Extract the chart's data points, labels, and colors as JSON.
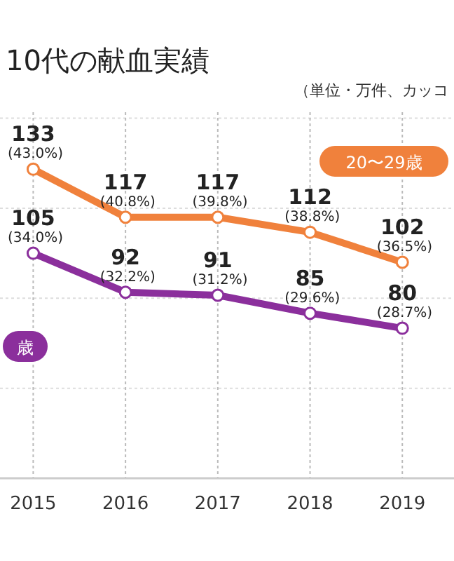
{
  "chart_data": {
    "type": "line",
    "title": "10代の献血実績",
    "annotations": [
      "（単位・万件、カッコ"
    ],
    "x": [
      2015,
      2016,
      2017,
      2018,
      2019
    ],
    "xlim": [
      2014.64,
      2019.56
    ],
    "xticks": [
      2015,
      2016,
      2017,
      2018,
      2019
    ],
    "ylim": [
      30,
      152
    ],
    "yticks": [
      {
        "value": 60,
        "label": null
      },
      {
        "value": 90,
        "label": null
      },
      {
        "value": 120,
        "label": null
      },
      {
        "value": 150,
        "label": null
      }
    ],
    "tick_labels": "x",
    "grid": true,
    "marker": "circle",
    "legend": "top right",
    "series": [
      {
        "name": "20〜29歳",
        "color": "#f0813c",
        "values": [
          133,
          117,
          117,
          112,
          102
        ],
        "value_labels": [
          "133 (43.0%)",
          "117 (40.8%)",
          "117 (39.8%)",
          "112 (38.8%)",
          "102 (36.5%)"
        ]
      },
      {
        "name": "歳",
        "color": "#8b2f9c",
        "values": [
          105,
          92,
          91,
          85,
          80
        ],
        "value_labels": [
          "105 (34.0%)",
          "92 (32.2%)",
          "91 (31.2%)",
          "85 (29.6%)",
          "80 (28.7%)"
        ]
      }
    ]
  }
}
